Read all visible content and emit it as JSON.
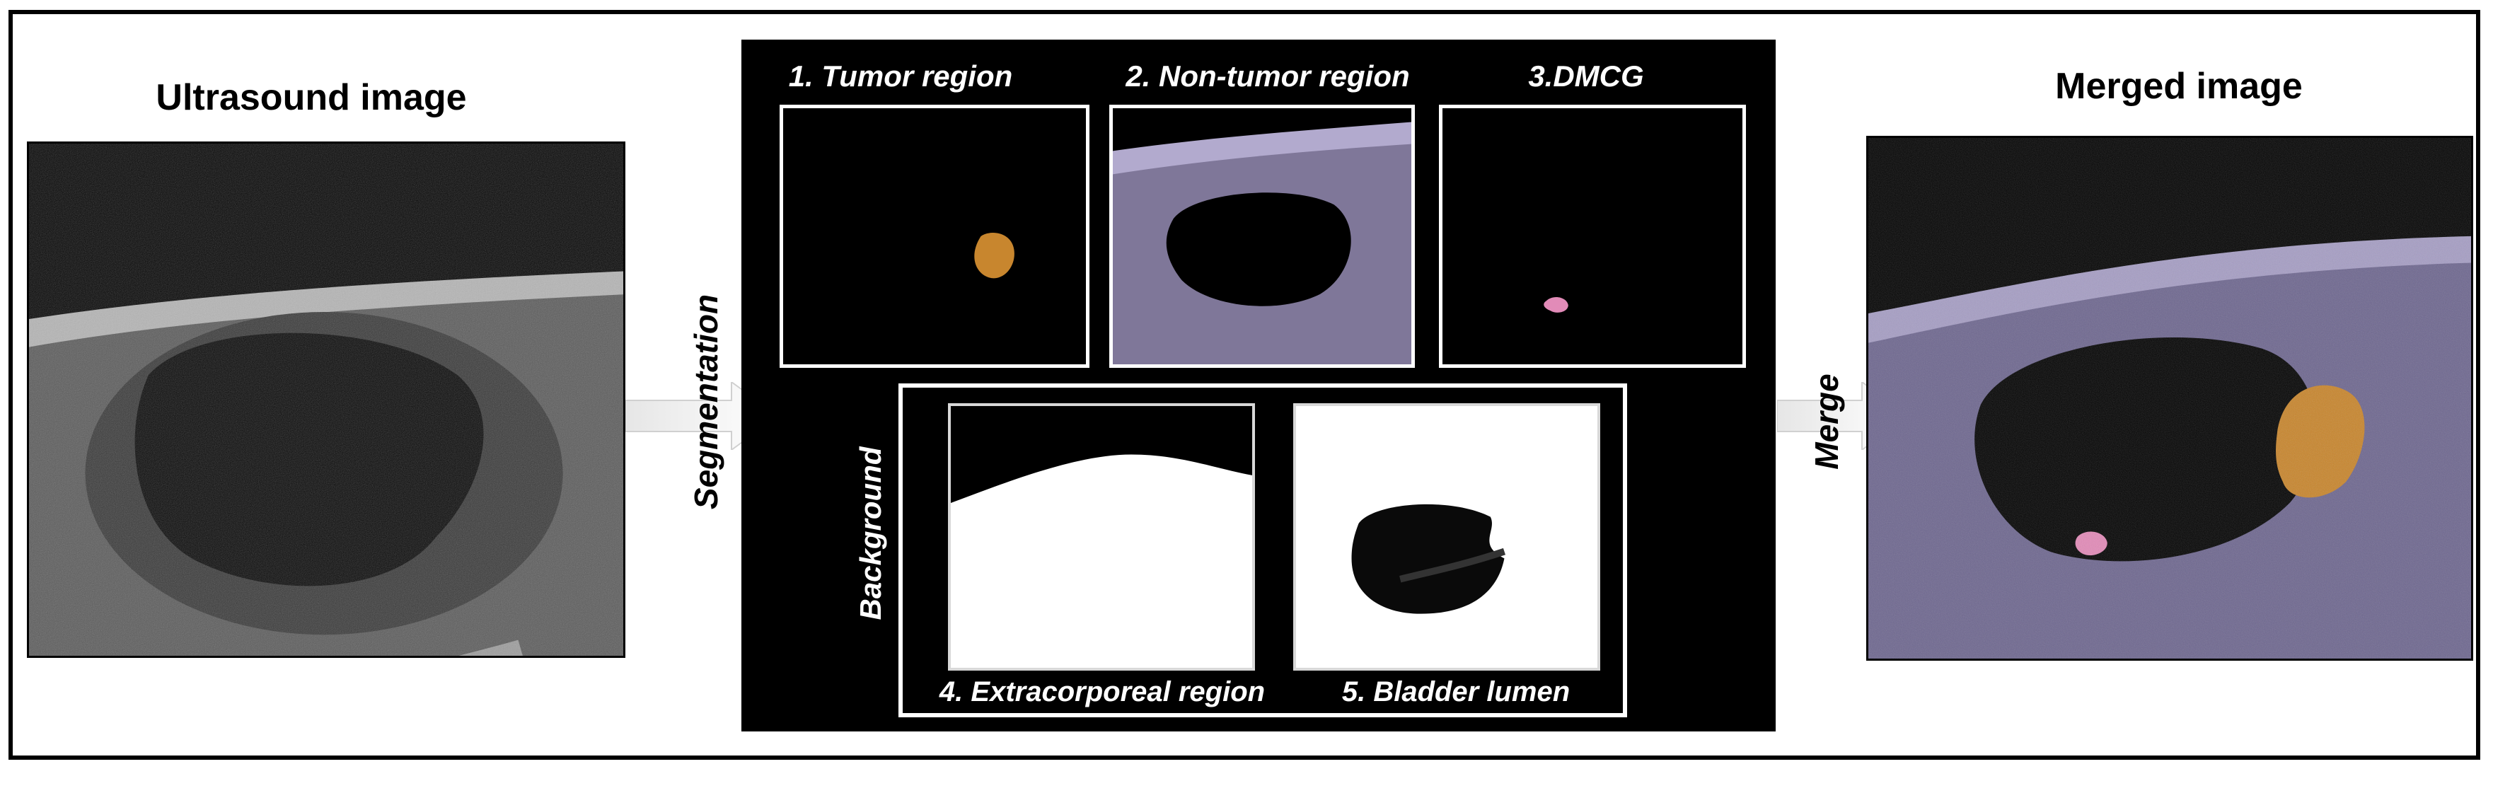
{
  "left_title": "Ultrasound image",
  "right_title": "Merged image",
  "arrow_labels": {
    "segmentation": "Segmentation",
    "merge": "Merge"
  },
  "panel": {
    "regions": [
      {
        "label": "1. Tumor region",
        "color": "#c8862e"
      },
      {
        "label": "2. Non-tumor region",
        "color": "#8a7fb0"
      },
      {
        "label": "3.DMCG",
        "color": "#e28bb8"
      }
    ],
    "background_group_label": "Background",
    "background_regions": [
      {
        "label": "4. Extracorporeal region"
      },
      {
        "label": "5. Bladder lumen"
      }
    ]
  }
}
